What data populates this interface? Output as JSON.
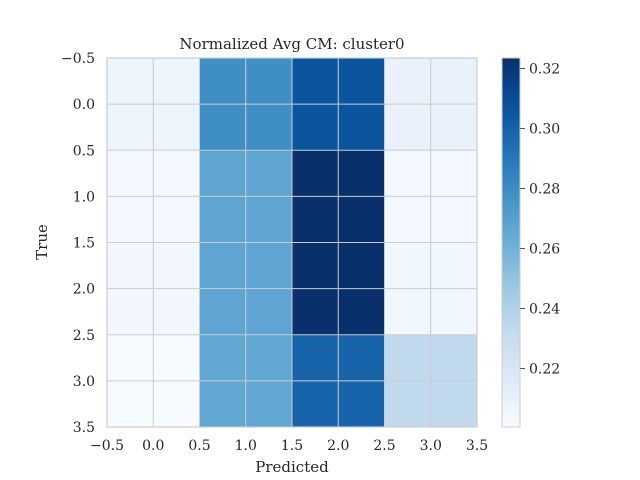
{
  "chart_data": {
    "type": "heatmap",
    "title": "Normalized Avg CM: cluster0",
    "xlabel": "Predicted",
    "ylabel": "True",
    "x_ticks": [
      "−0.5",
      "0.0",
      "0.5",
      "1.0",
      "1.5",
      "2.0",
      "2.5",
      "3.0",
      "3.5"
    ],
    "y_ticks": [
      "−0.5",
      "0.0",
      "0.5",
      "1.0",
      "1.5",
      "2.0",
      "2.5",
      "3.0",
      "3.5"
    ],
    "xlim": [
      -0.5,
      3.5
    ],
    "ylim": [
      3.5,
      -0.5
    ],
    "colormap": "Blues",
    "colorbar": {
      "min": 0.2005,
      "max": 0.3235,
      "ticks": [
        "0.22",
        "0.24",
        "0.26",
        "0.28",
        "0.30",
        "0.32"
      ],
      "tick_values": [
        0.22,
        0.24,
        0.26,
        0.28,
        0.3,
        0.32
      ]
    },
    "grid": true,
    "values": [
      [
        0.207,
        0.279,
        0.306,
        0.209
      ],
      [
        0.203,
        0.267,
        0.3235,
        0.2035
      ],
      [
        0.204,
        0.267,
        0.3235,
        0.2045
      ],
      [
        0.2005,
        0.266,
        0.299,
        0.233
      ]
    ]
  }
}
